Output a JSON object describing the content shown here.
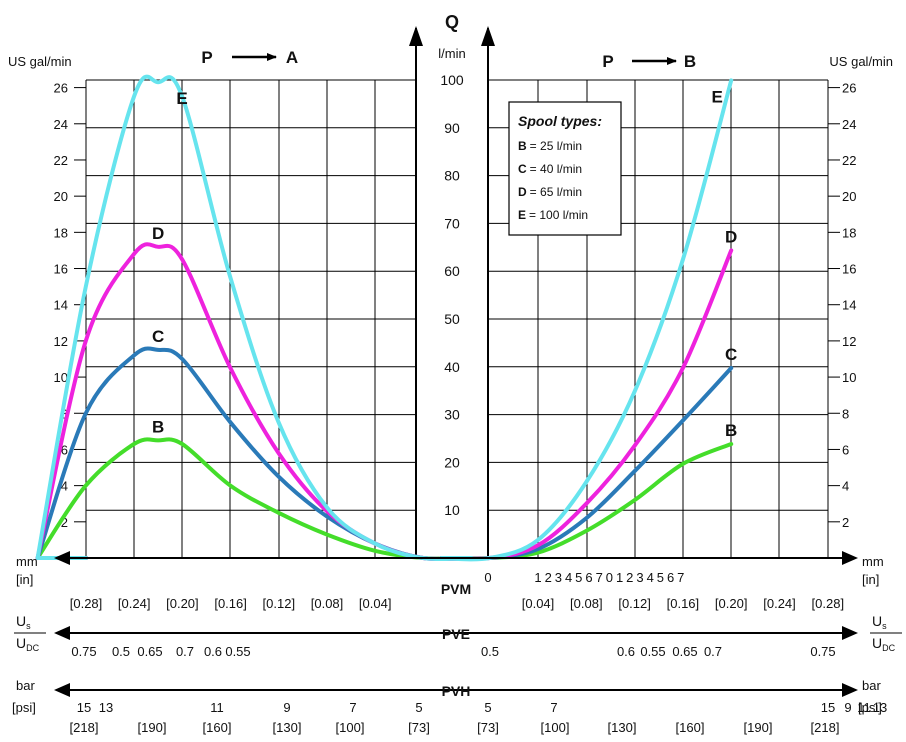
{
  "chart_data": {
    "type": "line",
    "directions": {
      "left": {
        "from": "P",
        "to": "A"
      },
      "right": {
        "from": "P",
        "to": "B"
      }
    },
    "q_axis": {
      "symbol": "Q",
      "unit": "l/min",
      "ticks": [
        "10",
        "20",
        "30",
        "40",
        "50",
        "60",
        "70",
        "80",
        "90",
        "100"
      ],
      "range": [
        0,
        100
      ]
    },
    "gal_axis": {
      "unit": "US gal/min",
      "left_ticks": [
        "2",
        "4",
        "6",
        "8",
        "10",
        "12",
        "14",
        "16",
        "18",
        "20",
        "22",
        "24",
        "26"
      ],
      "right_ticks": [
        "2",
        "4",
        "6",
        "8",
        "10",
        "12",
        "14",
        "16",
        "18",
        "20",
        "22",
        "24",
        "26"
      ],
      "range": [
        0,
        26.4
      ]
    },
    "legend": {
      "title": "Spool types:",
      "items": [
        {
          "key": "B",
          "text": "= 25 l/min"
        },
        {
          "key": "C",
          "text": "= 40 l/min"
        },
        {
          "key": "D",
          "text": "= 65 l/min"
        },
        {
          "key": "E",
          "text": "= 100 l/min"
        }
      ]
    },
    "series": [
      {
        "name": "B",
        "color": "#44dd2a",
        "left_points": [
          [
            -7,
            0
          ],
          [
            -6,
            4
          ],
          [
            -5,
            6.3
          ],
          [
            -4.5,
            6.5
          ],
          [
            -4,
            6.3
          ],
          [
            -3,
            4
          ],
          [
            -2,
            2.5
          ],
          [
            -1,
            1.3
          ],
          [
            0,
            0.4
          ],
          [
            1,
            0
          ],
          [
            2,
            0
          ]
        ],
        "right_points": [
          [
            -2,
            0
          ],
          [
            -1,
            0
          ],
          [
            0,
            0.3
          ],
          [
            1,
            1.5
          ],
          [
            2,
            3.2
          ],
          [
            3,
            5.2
          ],
          [
            4,
            6.3
          ]
        ]
      },
      {
        "name": "C",
        "color": "#2a7ab8",
        "left_points": [
          [
            -7,
            0
          ],
          [
            -6,
            8
          ],
          [
            -5,
            11.2
          ],
          [
            -4.5,
            11.5
          ],
          [
            -4,
            11
          ],
          [
            -3,
            7.5
          ],
          [
            -2,
            4.5
          ],
          [
            -1,
            2.3
          ],
          [
            0,
            0.8
          ],
          [
            1,
            0
          ],
          [
            2,
            0
          ]
        ],
        "right_points": [
          [
            -2,
            0
          ],
          [
            -1,
            0
          ],
          [
            0,
            0.5
          ],
          [
            1,
            2.2
          ],
          [
            2,
            4.8
          ],
          [
            3,
            7.6
          ],
          [
            4,
            10.5
          ]
        ]
      },
      {
        "name": "D",
        "color": "#ee22dd",
        "left_points": [
          [
            -7,
            0
          ],
          [
            -6,
            12
          ],
          [
            -5,
            16.8
          ],
          [
            -4.5,
            17.2
          ],
          [
            -4,
            16.5
          ],
          [
            -3,
            10.5
          ],
          [
            -2,
            5.8
          ],
          [
            -1,
            2.6
          ],
          [
            0,
            0.8
          ],
          [
            1,
            0
          ],
          [
            2,
            0
          ]
        ],
        "right_points": [
          [
            -2,
            0
          ],
          [
            -1,
            0
          ],
          [
            0,
            0.7
          ],
          [
            1,
            3
          ],
          [
            2,
            6.2
          ],
          [
            3,
            10.5
          ],
          [
            4,
            17
          ]
        ]
      },
      {
        "name": "E",
        "color": "#66e4ee",
        "left_points": [
          [
            -7,
            0
          ],
          [
            -6,
            15
          ],
          [
            -5,
            25.5
          ],
          [
            -4.5,
            26.3
          ],
          [
            -4,
            25.5
          ],
          [
            -3,
            15.5
          ],
          [
            -2,
            7.5
          ],
          [
            -1,
            2.8
          ],
          [
            0,
            0.8
          ],
          [
            1,
            0
          ],
          [
            2,
            0
          ]
        ],
        "right_points": [
          [
            -2,
            0
          ],
          [
            -1,
            0
          ],
          [
            0,
            1
          ],
          [
            1,
            4.2
          ],
          [
            2,
            9.2
          ],
          [
            3,
            16.5
          ],
          [
            4,
            26.4
          ]
        ]
      }
    ],
    "bottom_axes": {
      "pvm": {
        "label": "PVM",
        "left_unit": "mm",
        "left_unit_alt": "[in]",
        "right_unit": "mm",
        "right_unit_alt": "[in]",
        "center": "0",
        "right_mm": [
          "1",
          "2",
          "3",
          "4",
          "5",
          "6",
          "7",
          "0",
          "1",
          "2",
          "3",
          "4",
          "5",
          "6",
          "7"
        ],
        "left_in": [
          "[0.28]",
          "[0.24]",
          "[0.20]",
          "[0.16]",
          "[0.12]",
          "[0.08]",
          "[0.04]"
        ],
        "right_in": [
          "[0.04]",
          "[0.08]",
          "[0.12]",
          "[0.16]",
          "[0.20]",
          "[0.24]",
          "[0.28]"
        ]
      },
      "pve": {
        "label": "PVE",
        "unit_top": "U",
        "unit_top_sub": "s",
        "unit_bottom": "U",
        "unit_bottom_sub": "DC",
        "left": [
          "0.75",
          "0.5",
          "0.65",
          "0.7",
          "0.6",
          "0.55"
        ],
        "right": [
          "0.5",
          "0.6",
          "0.55",
          "0.65",
          "0.7",
          "0.75"
        ]
      },
      "pvh": {
        "label": "PVH",
        "unit": "bar",
        "unit_alt": "[psi]",
        "left_bar": [
          "15",
          "13",
          "11",
          "9",
          "7",
          "5"
        ],
        "left_psi": [
          "[218]",
          "[190]",
          "[160]",
          "[130]",
          "[100]",
          "[73]"
        ],
        "right_bar": [
          "5",
          "7",
          "15",
          "9",
          "11",
          "13"
        ],
        "right_psi": [
          "[73]",
          "[100]",
          "[130]",
          "[160]",
          "[190]",
          "[218]"
        ]
      }
    }
  }
}
